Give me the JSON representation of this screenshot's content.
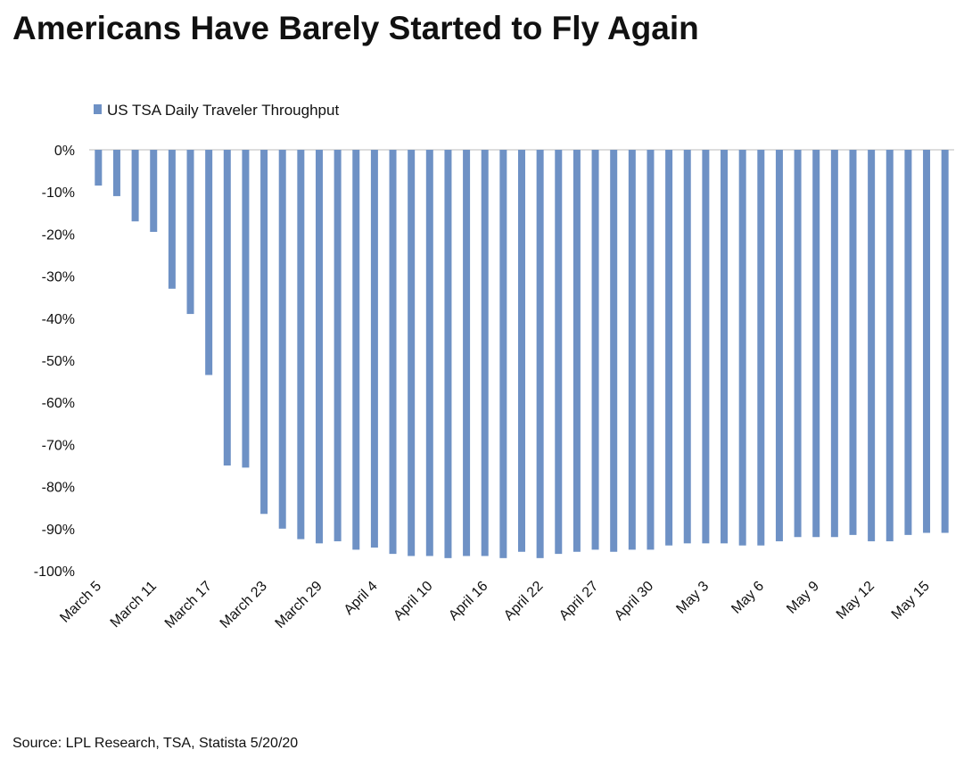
{
  "chart_data": {
    "type": "bar",
    "title": "Americans Have Barely Started to Fly Again",
    "source": "Source: LPL Research, TSA, Statista 5/20/20",
    "series": [
      {
        "name": "US TSA Daily Traveler Throughput",
        "color": "#6e91c5",
        "values": [
          -8.5,
          -11,
          -17,
          -19.5,
          -33,
          -39,
          -53.5,
          -75,
          -75.5,
          -86.5,
          -90,
          -92.5,
          -93.5,
          -93,
          -95,
          -94.5,
          -96,
          -96.5,
          -96.5,
          -97,
          -96.5,
          -96.5,
          -97,
          -95.5,
          -97,
          -96,
          -95.5,
          -95,
          -95.5,
          -95,
          -95,
          -94,
          -93.5,
          -93.5,
          -93.5,
          -94,
          -94,
          -93,
          -92,
          -92,
          -92,
          -91.5,
          -93,
          -93,
          -91.5,
          -91,
          -91
        ]
      }
    ],
    "categories": [
      "March 5",
      null,
      null,
      "March 11",
      null,
      null,
      "March 17",
      null,
      null,
      "March 23",
      null,
      null,
      "March 29",
      null,
      null,
      "April 4",
      null,
      null,
      "April 10",
      null,
      null,
      "April 16",
      null,
      null,
      "April 22",
      null,
      null,
      "April 27",
      null,
      null,
      "April 30",
      null,
      null,
      "May 3",
      null,
      null,
      "May 6",
      null,
      null,
      "May 9",
      null,
      null,
      "May 12",
      null,
      null,
      "May 15",
      null
    ],
    "ylim": [
      -100,
      0
    ],
    "yticks": [
      {
        "value": 0,
        "label": "0%"
      },
      {
        "value": -10,
        "label": "-10%"
      },
      {
        "value": -20,
        "label": "-20%"
      },
      {
        "value": -30,
        "label": "-30%"
      },
      {
        "value": -40,
        "label": "-40%"
      },
      {
        "value": -50,
        "label": "-50%"
      },
      {
        "value": -60,
        "label": "-60%"
      },
      {
        "value": -70,
        "label": "-70%"
      },
      {
        "value": -80,
        "label": "-80%"
      },
      {
        "value": -90,
        "label": "-90%"
      },
      {
        "value": -100,
        "label": "-100%"
      }
    ],
    "grid": false
  }
}
